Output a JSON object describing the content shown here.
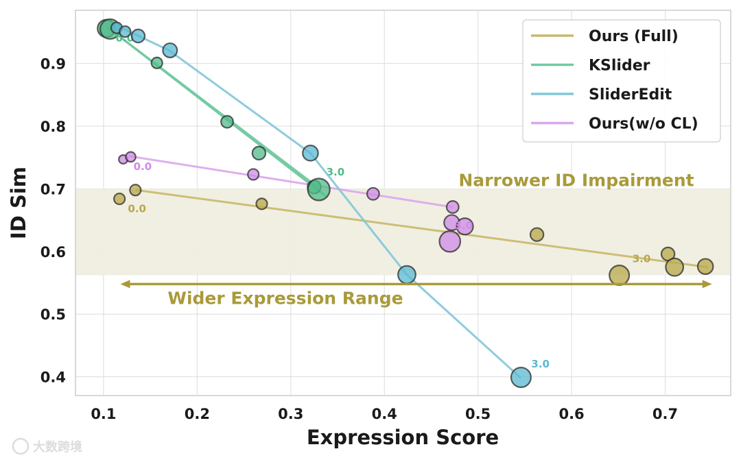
{
  "chart_data": {
    "type": "scatter",
    "title": "",
    "xlabel": "Expression Score",
    "ylabel": "ID Sim",
    "xlim": [
      0.07,
      0.77
    ],
    "ylim": [
      0.37,
      0.985
    ],
    "xticks": [
      "0.1",
      "0.2",
      "0.3",
      "0.4",
      "0.5",
      "0.6",
      "0.7"
    ],
    "yticks": [
      "0.4",
      "0.5",
      "0.6",
      "0.7",
      "0.8",
      "0.9"
    ],
    "grid": true,
    "legend_position": "top-right",
    "band": {
      "y_from": 0.562,
      "y_to": 0.7,
      "label": "Narrower ID Impairment",
      "color": "#a99a3a"
    },
    "range_arrow": {
      "x_from": 0.118,
      "x_to": 0.75,
      "y": 0.548,
      "label": "Wider Expression Range",
      "color": "#a99a3a"
    },
    "series": [
      {
        "name": "Ours (Full)",
        "color": "#c9b86a",
        "marker": "#b8a84a",
        "line": [
          [
            0.135,
            0.698
          ],
          [
            0.745,
            0.575
          ]
        ],
        "points": [
          {
            "x": 0.117,
            "y": 0.684,
            "s": 1
          },
          {
            "x": 0.134,
            "y": 0.698,
            "s": 1
          },
          {
            "x": 0.269,
            "y": 0.676,
            "s": 1
          },
          {
            "x": 0.563,
            "y": 0.627,
            "s": 1.2
          },
          {
            "x": 0.651,
            "y": 0.562,
            "s": 1.8
          },
          {
            "x": 0.703,
            "y": 0.596,
            "s": 1.2
          },
          {
            "x": 0.71,
            "y": 0.575,
            "s": 1.6
          },
          {
            "x": 0.743,
            "y": 0.576,
            "s": 1.4
          }
        ],
        "labels": [
          {
            "text": "0.0",
            "x": 0.126,
            "y": 0.663
          },
          {
            "text": "3.0",
            "x": 0.665,
            "y": 0.583
          }
        ]
      },
      {
        "name": "KSlider",
        "color": "#73c9a2",
        "marker": "#50bb8a",
        "line": [
          [
            0.105,
            0.957
          ],
          [
            0.33,
            0.7
          ]
        ],
        "points": [
          {
            "x": 0.103,
            "y": 0.956,
            "s": 1.6
          },
          {
            "x": 0.107,
            "y": 0.955,
            "s": 1.8
          },
          {
            "x": 0.157,
            "y": 0.901,
            "s": 1
          },
          {
            "x": 0.232,
            "y": 0.807,
            "s": 1.1
          },
          {
            "x": 0.266,
            "y": 0.757,
            "s": 1.2
          },
          {
            "x": 0.325,
            "y": 0.703,
            "s": 1.2
          },
          {
            "x": 0.33,
            "y": 0.699,
            "s": 2.0
          }
        ],
        "labels": [
          {
            "text": "0.0",
            "x": 0.113,
            "y": 0.935
          },
          {
            "text": "3.0",
            "x": 0.338,
            "y": 0.721
          }
        ]
      },
      {
        "name": "SliderEdit",
        "color": "#82c7d8",
        "marker": "#5bb8d2",
        "line": [
          [
            0.115,
            0.96
          ],
          [
            0.17,
            0.921
          ],
          [
            0.321,
            0.757
          ],
          [
            0.424,
            0.563
          ],
          [
            0.545,
            0.399
          ]
        ],
        "points": [
          {
            "x": 0.114,
            "y": 0.957,
            "s": 1
          },
          {
            "x": 0.123,
            "y": 0.951,
            "s": 1
          },
          {
            "x": 0.137,
            "y": 0.944,
            "s": 1.2
          },
          {
            "x": 0.171,
            "y": 0.921,
            "s": 1.3
          },
          {
            "x": 0.321,
            "y": 0.757,
            "s": 1.4
          },
          {
            "x": 0.424,
            "y": 0.563,
            "s": 1.6
          },
          {
            "x": 0.546,
            "y": 0.399,
            "s": 1.8
          }
        ],
        "labels": [
          {
            "text": "3.0",
            "x": 0.557,
            "y": 0.415
          }
        ]
      },
      {
        "name": "Ours(w/o CL)",
        "color": "#dba6ec",
        "marker": "#cf8be5",
        "line": [
          [
            0.128,
            0.752
          ],
          [
            0.472,
            0.671
          ]
        ],
        "points": [
          {
            "x": 0.121,
            "y": 0.747,
            "s": 0.8
          },
          {
            "x": 0.129,
            "y": 0.751,
            "s": 0.9
          },
          {
            "x": 0.26,
            "y": 0.723,
            "s": 1
          },
          {
            "x": 0.388,
            "y": 0.692,
            "s": 1.1
          },
          {
            "x": 0.473,
            "y": 0.671,
            "s": 1.1
          },
          {
            "x": 0.472,
            "y": 0.646,
            "s": 1.4
          },
          {
            "x": 0.486,
            "y": 0.64,
            "s": 1.5
          },
          {
            "x": 0.47,
            "y": 0.616,
            "s": 1.9
          }
        ],
        "labels": [
          {
            "text": "0.0",
            "x": 0.132,
            "y": 0.73
          },
          {
            "text": "3.0",
            "x": 0.475,
            "y": 0.636
          }
        ]
      }
    ]
  },
  "watermark": "大数跨境"
}
